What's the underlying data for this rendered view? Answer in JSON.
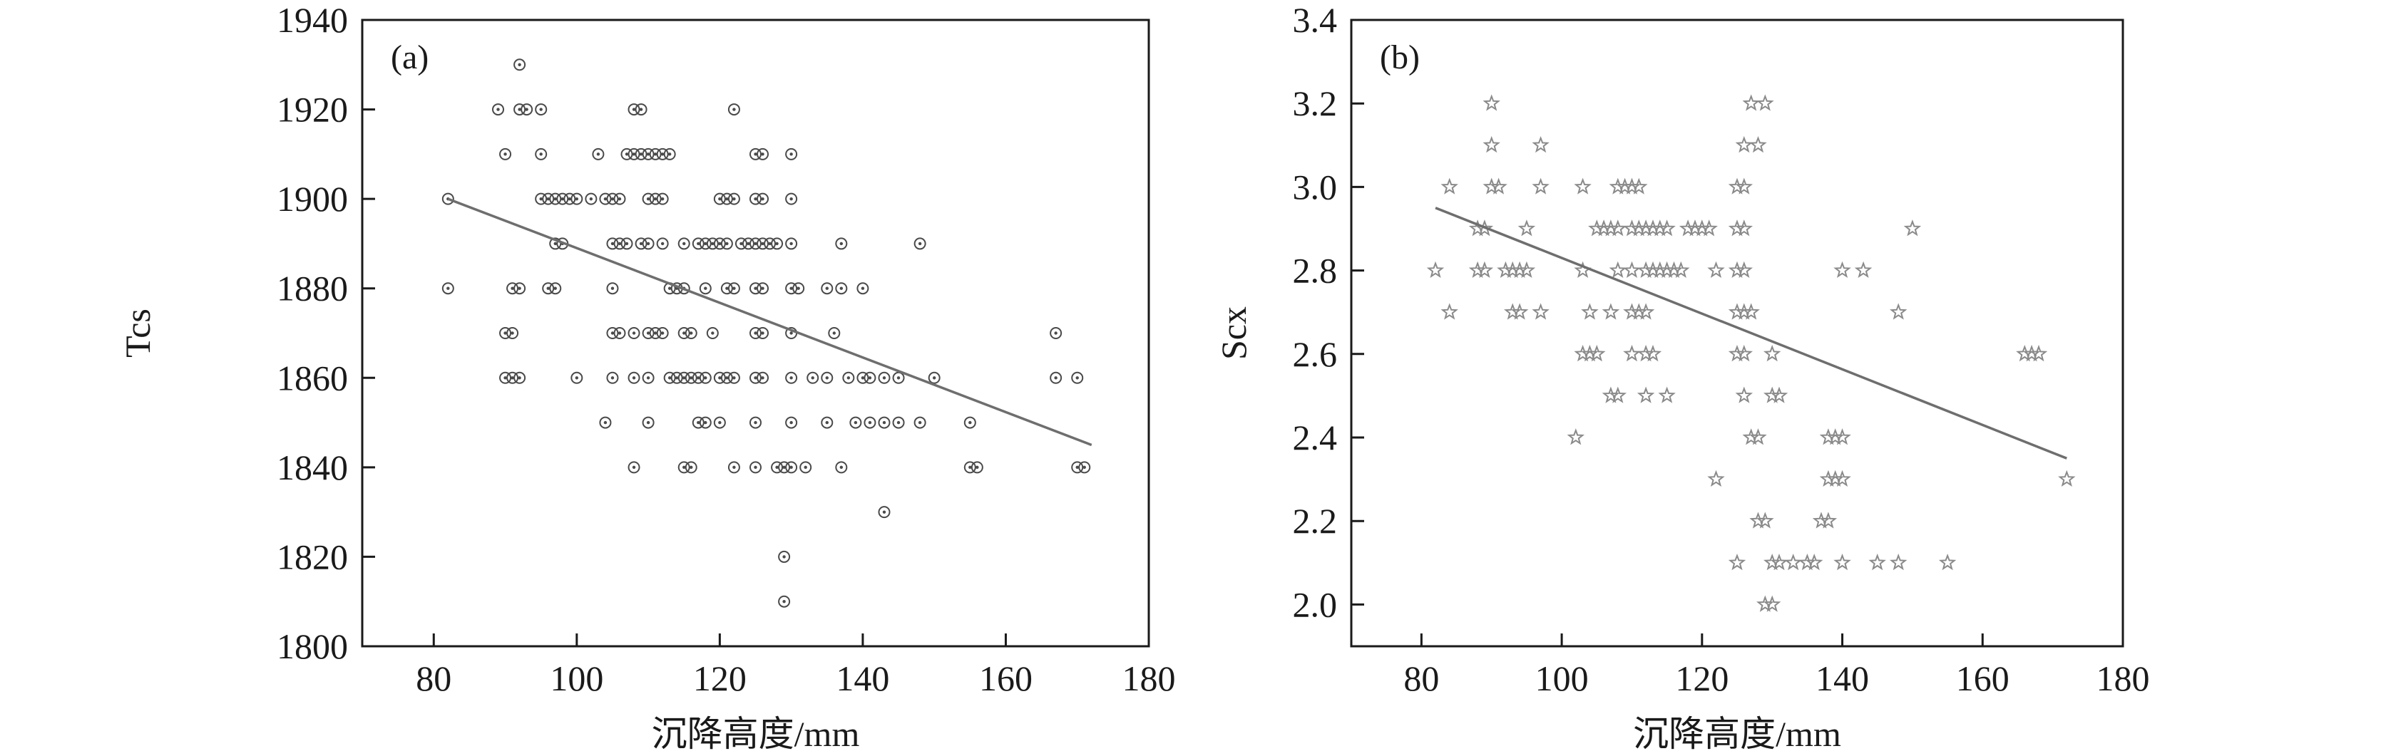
{
  "figure": {
    "background": "#ffffff",
    "axis_color": "#1a1a1a"
  },
  "chart_data": [
    {
      "type": "scatter",
      "panel_label": "(a)",
      "title": "",
      "xlabel": "沉降高度/mm",
      "ylabel": "Tcs",
      "xlim": [
        70,
        180
      ],
      "ylim": [
        1800,
        1940
      ],
      "xticks": [
        80,
        100,
        120,
        140,
        160,
        180
      ],
      "xtick_labels": [
        "80",
        "100",
        "120",
        "140",
        "160",
        "180"
      ],
      "yticks": [
        1800,
        1820,
        1840,
        1860,
        1880,
        1900,
        1920,
        1940
      ],
      "ytick_labels": [
        "1800",
        "1820",
        "1840",
        "1860",
        "1880",
        "1900",
        "1920",
        "1940"
      ],
      "grid": false,
      "legend": false,
      "marker": "circle-dot",
      "marker_color": "#4a4a4a",
      "trend_line": {
        "x1": 82,
        "y1": 1900,
        "x2": 172,
        "y2": 1845,
        "color": "#6e6e6e"
      },
      "points": [
        [
          92,
          1930
        ],
        [
          89,
          1920
        ],
        [
          92,
          1920
        ],
        [
          93,
          1920
        ],
        [
          95,
          1920
        ],
        [
          108,
          1920
        ],
        [
          109,
          1920
        ],
        [
          122,
          1920
        ],
        [
          90,
          1910
        ],
        [
          95,
          1910
        ],
        [
          103,
          1910
        ],
        [
          107,
          1910
        ],
        [
          108,
          1910
        ],
        [
          109,
          1910
        ],
        [
          110,
          1910
        ],
        [
          111,
          1910
        ],
        [
          112,
          1910
        ],
        [
          113,
          1910
        ],
        [
          125,
          1910
        ],
        [
          126,
          1910
        ],
        [
          130,
          1910
        ],
        [
          82,
          1900
        ],
        [
          95,
          1900
        ],
        [
          96,
          1900
        ],
        [
          97,
          1900
        ],
        [
          98,
          1900
        ],
        [
          99,
          1900
        ],
        [
          100,
          1900
        ],
        [
          102,
          1900
        ],
        [
          104,
          1900
        ],
        [
          105,
          1900
        ],
        [
          106,
          1900
        ],
        [
          110,
          1900
        ],
        [
          111,
          1900
        ],
        [
          112,
          1900
        ],
        [
          120,
          1900
        ],
        [
          121,
          1900
        ],
        [
          122,
          1900
        ],
        [
          125,
          1900
        ],
        [
          126,
          1900
        ],
        [
          130,
          1900
        ],
        [
          97,
          1890
        ],
        [
          98,
          1890
        ],
        [
          105,
          1890
        ],
        [
          106,
          1890
        ],
        [
          107,
          1890
        ],
        [
          109,
          1890
        ],
        [
          110,
          1890
        ],
        [
          112,
          1890
        ],
        [
          115,
          1890
        ],
        [
          117,
          1890
        ],
        [
          118,
          1890
        ],
        [
          119,
          1890
        ],
        [
          120,
          1890
        ],
        [
          121,
          1890
        ],
        [
          123,
          1890
        ],
        [
          124,
          1890
        ],
        [
          125,
          1890
        ],
        [
          126,
          1890
        ],
        [
          127,
          1890
        ],
        [
          128,
          1890
        ],
        [
          130,
          1890
        ],
        [
          137,
          1890
        ],
        [
          148,
          1890
        ],
        [
          82,
          1880
        ],
        [
          91,
          1880
        ],
        [
          92,
          1880
        ],
        [
          96,
          1880
        ],
        [
          97,
          1880
        ],
        [
          105,
          1880
        ],
        [
          113,
          1880
        ],
        [
          114,
          1880
        ],
        [
          115,
          1880
        ],
        [
          118,
          1880
        ],
        [
          121,
          1880
        ],
        [
          122,
          1880
        ],
        [
          125,
          1880
        ],
        [
          126,
          1880
        ],
        [
          130,
          1880
        ],
        [
          131,
          1880
        ],
        [
          135,
          1880
        ],
        [
          137,
          1880
        ],
        [
          140,
          1880
        ],
        [
          90,
          1870
        ],
        [
          91,
          1870
        ],
        [
          105,
          1870
        ],
        [
          106,
          1870
        ],
        [
          108,
          1870
        ],
        [
          110,
          1870
        ],
        [
          111,
          1870
        ],
        [
          112,
          1870
        ],
        [
          115,
          1870
        ],
        [
          116,
          1870
        ],
        [
          119,
          1870
        ],
        [
          125,
          1870
        ],
        [
          126,
          1870
        ],
        [
          130,
          1870
        ],
        [
          136,
          1870
        ],
        [
          167,
          1870
        ],
        [
          90,
          1860
        ],
        [
          91,
          1860
        ],
        [
          92,
          1860
        ],
        [
          100,
          1860
        ],
        [
          105,
          1860
        ],
        [
          108,
          1860
        ],
        [
          110,
          1860
        ],
        [
          113,
          1860
        ],
        [
          114,
          1860
        ],
        [
          115,
          1860
        ],
        [
          116,
          1860
        ],
        [
          117,
          1860
        ],
        [
          118,
          1860
        ],
        [
          120,
          1860
        ],
        [
          121,
          1860
        ],
        [
          122,
          1860
        ],
        [
          125,
          1860
        ],
        [
          126,
          1860
        ],
        [
          130,
          1860
        ],
        [
          133,
          1860
        ],
        [
          135,
          1860
        ],
        [
          138,
          1860
        ],
        [
          140,
          1860
        ],
        [
          141,
          1860
        ],
        [
          143,
          1860
        ],
        [
          145,
          1860
        ],
        [
          150,
          1860
        ],
        [
          167,
          1860
        ],
        [
          170,
          1860
        ],
        [
          104,
          1850
        ],
        [
          110,
          1850
        ],
        [
          117,
          1850
        ],
        [
          118,
          1850
        ],
        [
          120,
          1850
        ],
        [
          125,
          1850
        ],
        [
          130,
          1850
        ],
        [
          135,
          1850
        ],
        [
          139,
          1850
        ],
        [
          141,
          1850
        ],
        [
          143,
          1850
        ],
        [
          145,
          1850
        ],
        [
          148,
          1850
        ],
        [
          155,
          1850
        ],
        [
          108,
          1840
        ],
        [
          115,
          1840
        ],
        [
          116,
          1840
        ],
        [
          122,
          1840
        ],
        [
          125,
          1840
        ],
        [
          128,
          1840
        ],
        [
          129,
          1840
        ],
        [
          130,
          1840
        ],
        [
          132,
          1840
        ],
        [
          137,
          1840
        ],
        [
          155,
          1840
        ],
        [
          156,
          1840
        ],
        [
          170,
          1840
        ],
        [
          171,
          1840
        ],
        [
          143,
          1830
        ],
        [
          129,
          1820
        ],
        [
          129,
          1810
        ]
      ]
    },
    {
      "type": "scatter",
      "panel_label": "(b)",
      "title": "",
      "xlabel": "沉降高度/mm",
      "ylabel": "Scx",
      "xlim": [
        70,
        180
      ],
      "ylim": [
        1.9,
        3.4
      ],
      "xticks": [
        80,
        100,
        120,
        140,
        160,
        180
      ],
      "xtick_labels": [
        "80",
        "100",
        "120",
        "140",
        "160",
        "180"
      ],
      "yticks": [
        2.0,
        2.2,
        2.4,
        2.6,
        2.8,
        3.0,
        3.2,
        3.4
      ],
      "ytick_labels": [
        "2.0",
        "2.2",
        "2.4",
        "2.6",
        "2.8",
        "3.0",
        "3.2",
        "3.4"
      ],
      "grid": false,
      "legend": false,
      "marker": "star",
      "marker_color": "#8a8a8a",
      "trend_line": {
        "x1": 82,
        "y1": 2.95,
        "x2": 172,
        "y2": 2.35,
        "color": "#6e6e6e"
      },
      "points": [
        [
          90,
          3.2
        ],
        [
          127,
          3.2
        ],
        [
          129,
          3.2
        ],
        [
          90,
          3.1
        ],
        [
          97,
          3.1
        ],
        [
          126,
          3.1
        ],
        [
          128,
          3.1
        ],
        [
          84,
          3.0
        ],
        [
          90,
          3.0
        ],
        [
          91,
          3.0
        ],
        [
          97,
          3.0
        ],
        [
          103,
          3.0
        ],
        [
          108,
          3.0
        ],
        [
          109,
          3.0
        ],
        [
          110,
          3.0
        ],
        [
          111,
          3.0
        ],
        [
          125,
          3.0
        ],
        [
          126,
          3.0
        ],
        [
          88,
          2.9
        ],
        [
          89,
          2.9
        ],
        [
          95,
          2.9
        ],
        [
          105,
          2.9
        ],
        [
          106,
          2.9
        ],
        [
          107,
          2.9
        ],
        [
          108,
          2.9
        ],
        [
          110,
          2.9
        ],
        [
          111,
          2.9
        ],
        [
          112,
          2.9
        ],
        [
          113,
          2.9
        ],
        [
          114,
          2.9
        ],
        [
          115,
          2.9
        ],
        [
          118,
          2.9
        ],
        [
          119,
          2.9
        ],
        [
          120,
          2.9
        ],
        [
          121,
          2.9
        ],
        [
          125,
          2.9
        ],
        [
          126,
          2.9
        ],
        [
          150,
          2.9
        ],
        [
          82,
          2.8
        ],
        [
          88,
          2.8
        ],
        [
          89,
          2.8
        ],
        [
          92,
          2.8
        ],
        [
          93,
          2.8
        ],
        [
          94,
          2.8
        ],
        [
          95,
          2.8
        ],
        [
          103,
          2.8
        ],
        [
          108,
          2.8
        ],
        [
          110,
          2.8
        ],
        [
          112,
          2.8
        ],
        [
          113,
          2.8
        ],
        [
          114,
          2.8
        ],
        [
          115,
          2.8
        ],
        [
          116,
          2.8
        ],
        [
          117,
          2.8
        ],
        [
          122,
          2.8
        ],
        [
          125,
          2.8
        ],
        [
          126,
          2.8
        ],
        [
          140,
          2.8
        ],
        [
          143,
          2.8
        ],
        [
          84,
          2.7
        ],
        [
          93,
          2.7
        ],
        [
          94,
          2.7
        ],
        [
          97,
          2.7
        ],
        [
          104,
          2.7
        ],
        [
          107,
          2.7
        ],
        [
          110,
          2.7
        ],
        [
          111,
          2.7
        ],
        [
          112,
          2.7
        ],
        [
          125,
          2.7
        ],
        [
          126,
          2.7
        ],
        [
          127,
          2.7
        ],
        [
          148,
          2.7
        ],
        [
          103,
          2.6
        ],
        [
          104,
          2.6
        ],
        [
          105,
          2.6
        ],
        [
          110,
          2.6
        ],
        [
          112,
          2.6
        ],
        [
          113,
          2.6
        ],
        [
          125,
          2.6
        ],
        [
          126,
          2.6
        ],
        [
          130,
          2.6
        ],
        [
          166,
          2.6
        ],
        [
          167,
          2.6
        ],
        [
          168,
          2.6
        ],
        [
          107,
          2.5
        ],
        [
          108,
          2.5
        ],
        [
          112,
          2.5
        ],
        [
          115,
          2.5
        ],
        [
          126,
          2.5
        ],
        [
          130,
          2.5
        ],
        [
          131,
          2.5
        ],
        [
          102,
          2.4
        ],
        [
          127,
          2.4
        ],
        [
          128,
          2.4
        ],
        [
          138,
          2.4
        ],
        [
          139,
          2.4
        ],
        [
          140,
          2.4
        ],
        [
          122,
          2.3
        ],
        [
          138,
          2.3
        ],
        [
          139,
          2.3
        ],
        [
          140,
          2.3
        ],
        [
          172,
          2.3
        ],
        [
          128,
          2.2
        ],
        [
          129,
          2.2
        ],
        [
          137,
          2.2
        ],
        [
          138,
          2.2
        ],
        [
          125,
          2.1
        ],
        [
          130,
          2.1
        ],
        [
          131,
          2.1
        ],
        [
          133,
          2.1
        ],
        [
          135,
          2.1
        ],
        [
          136,
          2.1
        ],
        [
          140,
          2.1
        ],
        [
          145,
          2.1
        ],
        [
          148,
          2.1
        ],
        [
          155,
          2.1
        ],
        [
          129,
          2.0
        ],
        [
          130,
          2.0
        ]
      ]
    }
  ]
}
